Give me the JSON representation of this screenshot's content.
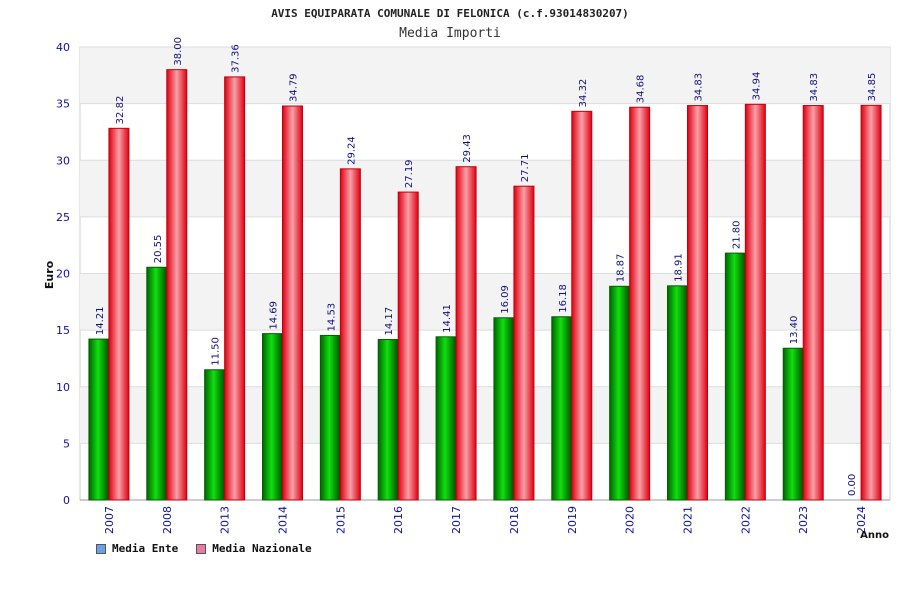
{
  "chart_data": {
    "type": "bar",
    "title": "AVIS EQUIPARATA COMUNALE DI FELONICA (c.f.93014830207)",
    "subtitle": "Media Importi",
    "xlabel": "Anno",
    "ylabel": "Euro",
    "ylim": [
      0,
      40
    ],
    "yticks": [
      0,
      5,
      10,
      15,
      20,
      25,
      30,
      35,
      40
    ],
    "categories": [
      "2007",
      "2008",
      "2013",
      "2014",
      "2015",
      "2016",
      "2017",
      "2018",
      "2019",
      "2020",
      "2021",
      "2022",
      "2023",
      "2024"
    ],
    "series": [
      {
        "name": "Media Ente",
        "color": "#00a000",
        "swatch_color": "#6aa0e8",
        "values": [
          14.21,
          20.55,
          11.5,
          14.69,
          14.53,
          14.17,
          14.41,
          16.09,
          16.18,
          18.87,
          18.91,
          21.8,
          13.4,
          0.0
        ],
        "labels": [
          "14.21",
          "20.55",
          "11.50",
          "14.69",
          "14.53",
          "14.17",
          "14.41",
          "16.09",
          "16.18",
          "18.87",
          "18.91",
          "21.80",
          "13.40",
          "0.00"
        ]
      },
      {
        "name": "Media Nazionale",
        "color": "#e8101a",
        "swatch_color": "#e87aa8",
        "values": [
          32.82,
          38.0,
          37.36,
          34.79,
          29.24,
          27.19,
          29.43,
          27.71,
          34.32,
          34.68,
          34.83,
          34.94,
          34.83,
          34.85
        ],
        "labels": [
          "32.82",
          "38.00",
          "37.36",
          "34.79",
          "29.24",
          "27.19",
          "29.43",
          "27.71",
          "34.32",
          "34.68",
          "34.83",
          "34.94",
          "34.83",
          "34.85"
        ]
      }
    ],
    "grid": true,
    "legend_position": "bottom-left"
  }
}
